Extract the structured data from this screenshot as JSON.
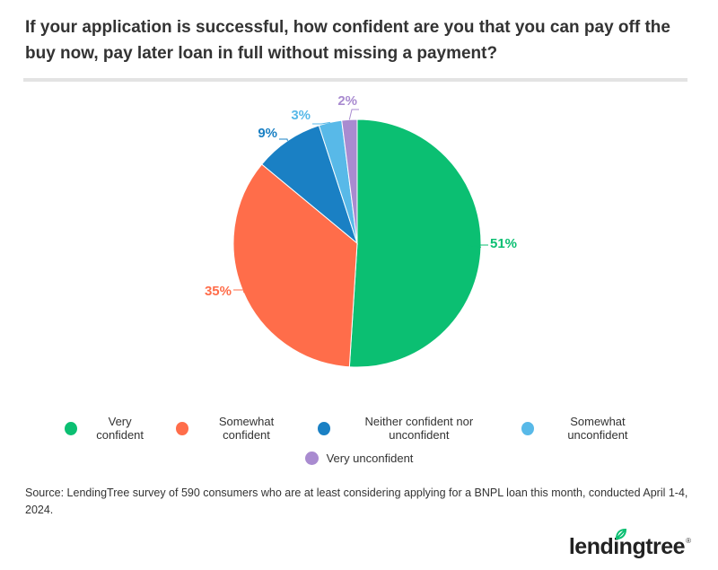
{
  "title": "If your application is successful, how confident are you that you can pay off the buy now, pay later loan in full without missing a payment?",
  "source": "Source: LendingTree survey of 590 consumers who are at least considering applying for a BNPL loan this month, conducted April 1-4, 2024.",
  "brand": {
    "name": "lendingtree",
    "registered": "®",
    "leaf_color": "#0bbf72"
  },
  "chart_data": {
    "type": "pie",
    "title": "If your application is successful, how confident are you that you can pay off the buy now, pay later loan in full without missing a payment?",
    "legend_position": "bottom",
    "start_angle_deg": 0,
    "direction": "clockwise",
    "slices": [
      {
        "name": "Very confident",
        "value": 51,
        "label": "51%",
        "color": "#0bbf72"
      },
      {
        "name": "Somewhat confident",
        "value": 35,
        "label": "35%",
        "color": "#ff6d4a"
      },
      {
        "name": "Neither confident nor unconfident",
        "value": 9,
        "label": "9%",
        "color": "#1a80c4"
      },
      {
        "name": "Somewhat unconfident",
        "value": 3,
        "label": "3%",
        "color": "#58b9e8"
      },
      {
        "name": "Very unconfident",
        "value": 2,
        "label": "2%",
        "color": "#a98bd0"
      }
    ]
  }
}
